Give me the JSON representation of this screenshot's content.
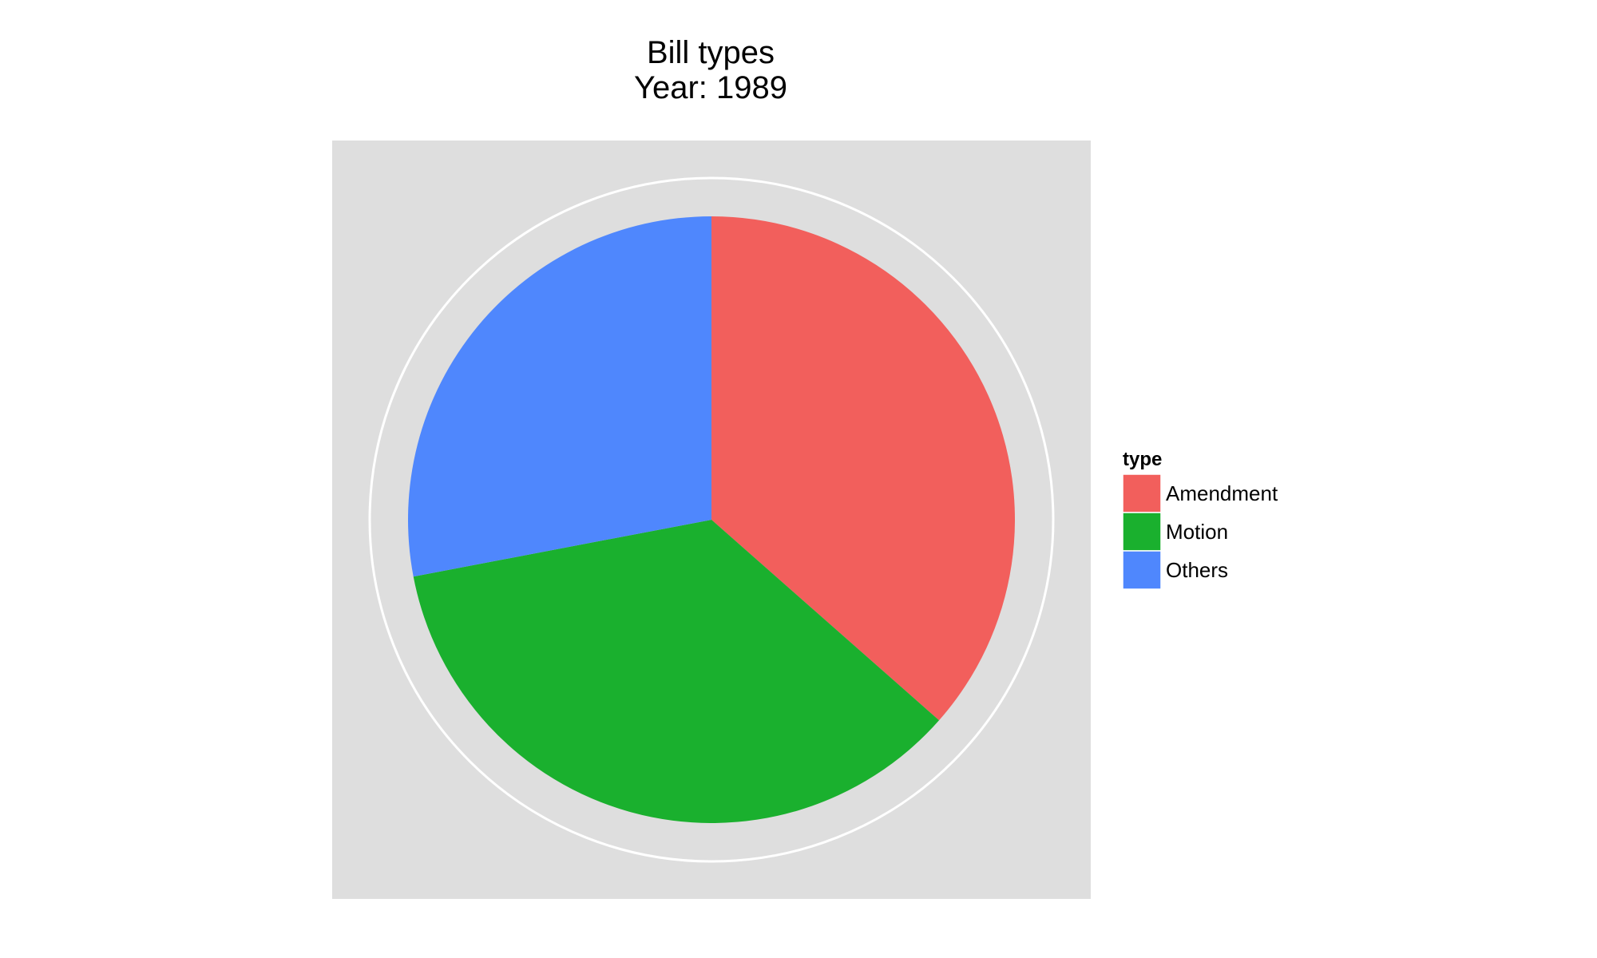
{
  "chart_data": {
    "type": "pie",
    "title": "Bill types",
    "subtitle": "Year: 1989",
    "categories": [
      "Amendment",
      "Motion",
      "Others"
    ],
    "values": [
      36.5,
      35.5,
      28.0
    ],
    "colors": [
      "#F25F5C",
      "#1AB02E",
      "#4F87FD"
    ],
    "start_angle_deg": 0,
    "direction": "clockwise",
    "legend": {
      "title": "type",
      "position": "right"
    },
    "panel_background": "#DEDEDE",
    "grid": true
  }
}
